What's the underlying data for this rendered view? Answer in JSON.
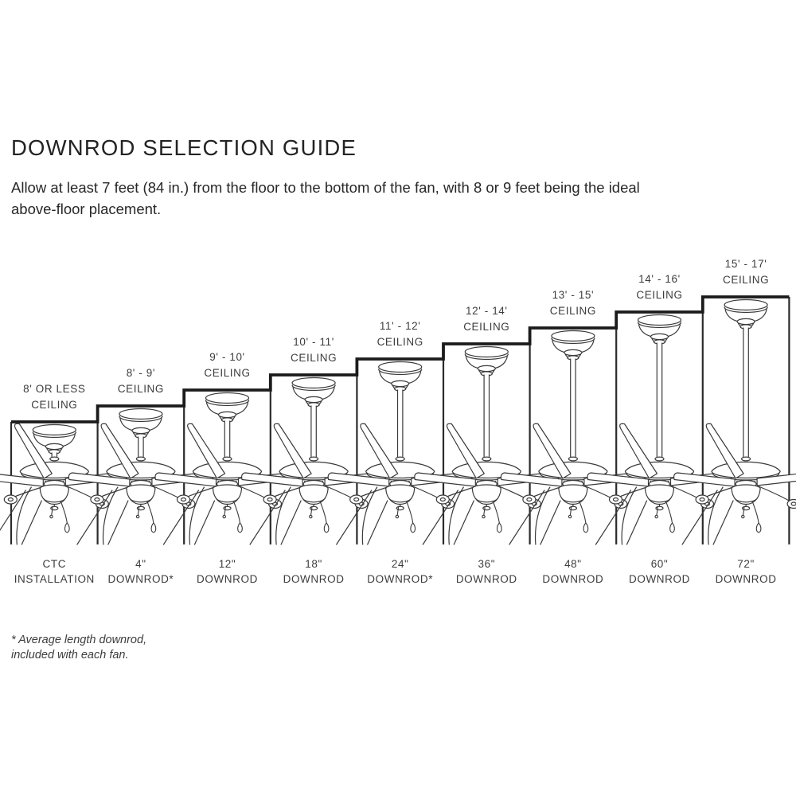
{
  "page": {
    "background": "#ffffff"
  },
  "header": {
    "title": "DOWNROD SELECTION GUIDE",
    "subtitle": "Allow at least 7 feet (84 in.) from the floor to the bottom of the fan, with 8 or 9 feet being the ideal\nabove-floor placement."
  },
  "footnote": "* Average length downrod,\nincluded with each fan.",
  "colors": {
    "line": "#3a3a3a",
    "thick_line": "#1b1b1b",
    "border": "#2b2b2b",
    "fill": "#ffffff",
    "text": "#3c3c3c",
    "title_text": "#232323"
  },
  "columns": [
    {
      "ceiling_range": "8' OR LESS",
      "ceiling_word": "CEILING",
      "downrod_size": "CTC",
      "downrod_word": "INSTALLATION"
    },
    {
      "ceiling_range": "8' - 9'",
      "ceiling_word": "CEILING",
      "downrod_size": "4\"",
      "downrod_word": "DOWNROD*"
    },
    {
      "ceiling_range": "9' - 10'",
      "ceiling_word": "CEILING",
      "downrod_size": "12\"",
      "downrod_word": "DOWNROD"
    },
    {
      "ceiling_range": "10' - 11'",
      "ceiling_word": "CEILING",
      "downrod_size": "18\"",
      "downrod_word": "DOWNROD"
    },
    {
      "ceiling_range": "11' - 12'",
      "ceiling_word": "CEILING",
      "downrod_size": "24\"",
      "downrod_word": "DOWNROD*"
    },
    {
      "ceiling_range": "12' - 14'",
      "ceiling_word": "CEILING",
      "downrod_size": "36\"",
      "downrod_word": "DOWNROD"
    },
    {
      "ceiling_range": "13' - 15'",
      "ceiling_word": "CEILING",
      "downrod_size": "48\"",
      "downrod_word": "DOWNROD"
    },
    {
      "ceiling_range": "14' - 16'",
      "ceiling_word": "CEILING",
      "downrod_size": "60\"",
      "downrod_word": "DOWNROD"
    },
    {
      "ceiling_range": "15' - 17'",
      "ceiling_word": "CEILING",
      "downrod_size": "72\"",
      "downrod_word": "DOWNROD"
    }
  ]
}
